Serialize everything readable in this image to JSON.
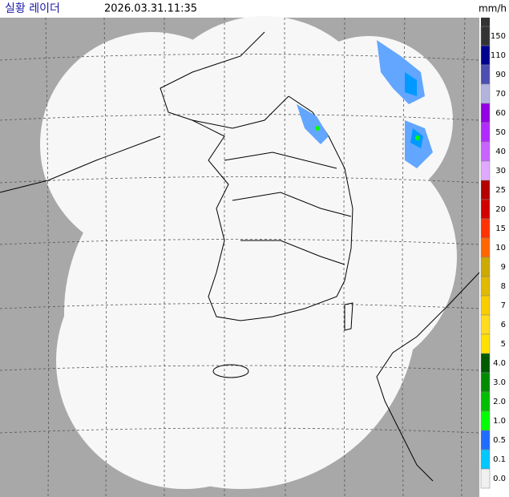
{
  "header": {
    "title": "실황 레이더",
    "timestamp": "2026.03.31.11:35",
    "unit": "mm/h"
  },
  "legend": {
    "items": [
      {
        "label": "150",
        "color": "#333333"
      },
      {
        "label": "110",
        "color": "#000390"
      },
      {
        "label": "90",
        "color": "#4c4eb1"
      },
      {
        "label": "70",
        "color": "#b3b4de"
      },
      {
        "label": "60",
        "color": "#9300e4"
      },
      {
        "label": "50",
        "color": "#b229ff"
      },
      {
        "label": "40",
        "color": "#c963ff"
      },
      {
        "label": "30",
        "color": "#e0a9ff"
      },
      {
        "label": "25",
        "color": "#b40000"
      },
      {
        "label": "20",
        "color": "#d20000"
      },
      {
        "label": "15",
        "color": "#ff3200"
      },
      {
        "label": "10",
        "color": "#ff6600"
      },
      {
        "label": "9",
        "color": "#ccaa00"
      },
      {
        "label": "8",
        "color": "#e0b900"
      },
      {
        "label": "7",
        "color": "#f9cd00"
      },
      {
        "label": "6",
        "color": "#ffdc1f"
      },
      {
        "label": "5",
        "color": "#ffe100"
      },
      {
        "label": "4.0",
        "color": "#005a00"
      },
      {
        "label": "3.0",
        "color": "#008c00"
      },
      {
        "label": "2.0",
        "color": "#00be00"
      },
      {
        "label": "1.0",
        "color": "#00ff00"
      },
      {
        "label": "0.5",
        "color": "#1f6cff"
      },
      {
        "label": "0.1",
        "color": "#00c8ff"
      },
      {
        "label": "0.0",
        "color": "#f0f0f0"
      }
    ]
  }
}
